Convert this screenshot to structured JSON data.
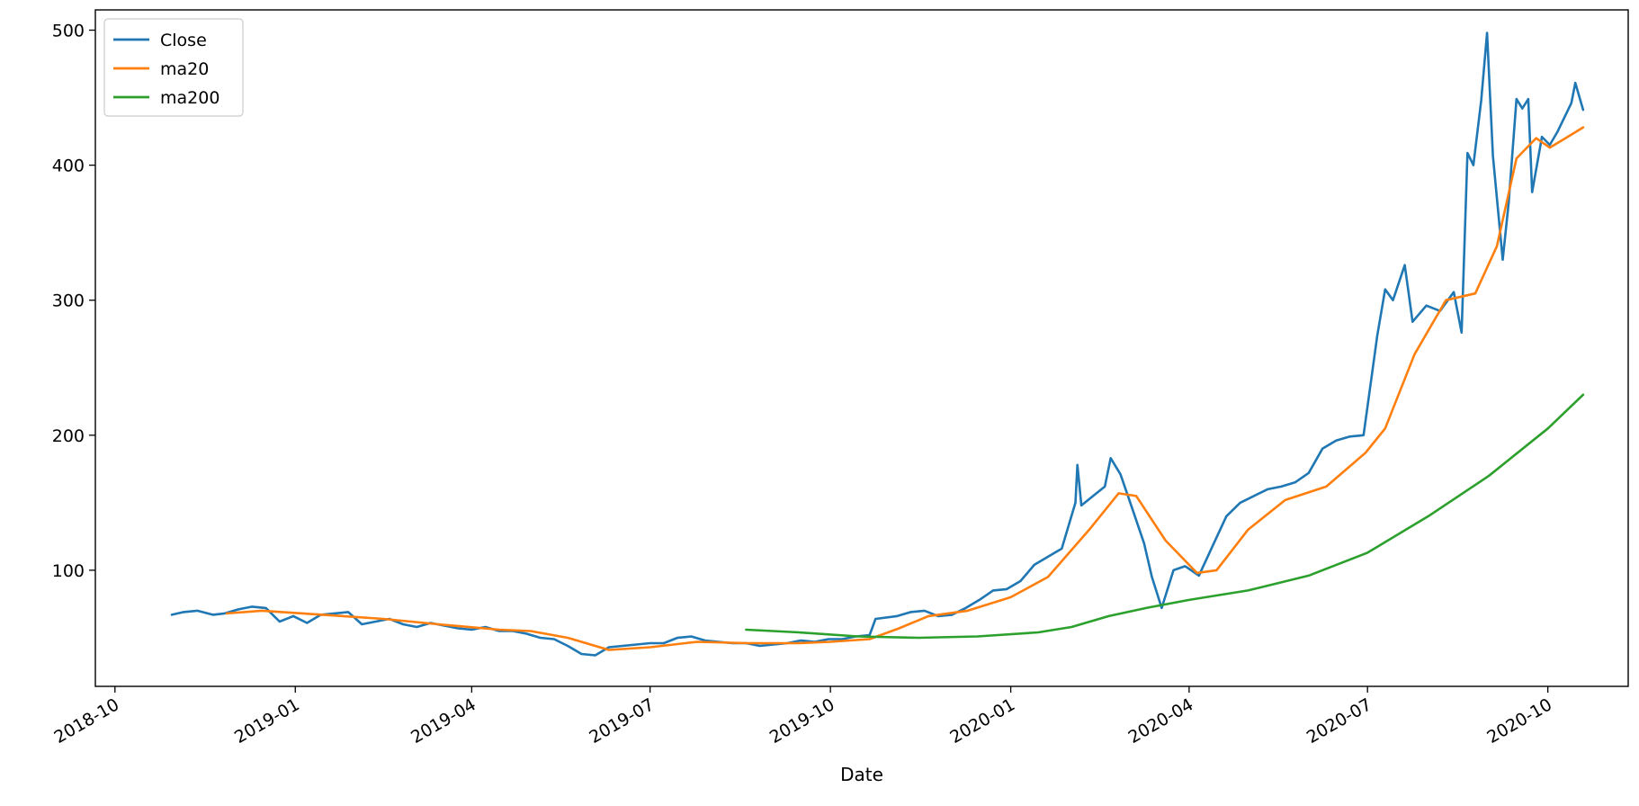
{
  "chart_data": {
    "type": "line",
    "xlabel": "Date",
    "ylabel": "",
    "xlim": [
      "2018-09-21",
      "2020-11-11"
    ],
    "ylim": [
      14,
      515
    ],
    "x_ticks": [
      "2018-10-01",
      "2019-01-01",
      "2019-04-01",
      "2019-07-01",
      "2019-10-01",
      "2020-01-01",
      "2020-04-01",
      "2020-07-01",
      "2020-10-01"
    ],
    "x_tick_labels": [
      "2018-10",
      "2019-01",
      "2019-04",
      "2019-07",
      "2019-10",
      "2020-01",
      "2020-04",
      "2020-07",
      "2020-10"
    ],
    "y_ticks": [
      100,
      200,
      300,
      400,
      500
    ],
    "y_tick_labels": [
      "100",
      "200",
      "300",
      "400",
      "500"
    ],
    "legend_position": "top-left",
    "grid": false,
    "series": [
      {
        "name": "Close",
        "color": "#1f77b4",
        "points": [
          [
            "2018-10-30",
            67
          ],
          [
            "2018-11-05",
            69
          ],
          [
            "2018-11-12",
            70
          ],
          [
            "2018-11-20",
            67
          ],
          [
            "2018-11-26",
            68
          ],
          [
            "2018-12-03",
            71
          ],
          [
            "2018-12-10",
            73
          ],
          [
            "2018-12-17",
            72
          ],
          [
            "2018-12-24",
            62
          ],
          [
            "2018-12-31",
            66
          ],
          [
            "2019-01-07",
            61
          ],
          [
            "2019-01-14",
            67
          ],
          [
            "2019-01-21",
            68
          ],
          [
            "2019-01-28",
            69
          ],
          [
            "2019-02-04",
            60
          ],
          [
            "2019-02-11",
            62
          ],
          [
            "2019-02-18",
            64
          ],
          [
            "2019-02-25",
            60
          ],
          [
            "2019-03-04",
            58
          ],
          [
            "2019-03-11",
            61
          ],
          [
            "2019-03-18",
            59
          ],
          [
            "2019-03-25",
            57
          ],
          [
            "2019-04-01",
            56
          ],
          [
            "2019-04-08",
            58
          ],
          [
            "2019-04-15",
            55
          ],
          [
            "2019-04-22",
            55
          ],
          [
            "2019-04-29",
            53
          ],
          [
            "2019-05-06",
            50
          ],
          [
            "2019-05-13",
            49
          ],
          [
            "2019-05-20",
            44
          ],
          [
            "2019-05-27",
            38
          ],
          [
            "2019-06-03",
            37
          ],
          [
            "2019-06-10",
            43
          ],
          [
            "2019-06-17",
            44
          ],
          [
            "2019-06-24",
            45
          ],
          [
            "2019-07-01",
            46
          ],
          [
            "2019-07-08",
            46
          ],
          [
            "2019-07-15",
            50
          ],
          [
            "2019-07-22",
            51
          ],
          [
            "2019-07-29",
            48
          ],
          [
            "2019-08-05",
            47
          ],
          [
            "2019-08-12",
            46
          ],
          [
            "2019-08-19",
            46
          ],
          [
            "2019-08-26",
            44
          ],
          [
            "2019-09-02",
            45
          ],
          [
            "2019-09-09",
            46
          ],
          [
            "2019-09-16",
            48
          ],
          [
            "2019-09-23",
            47
          ],
          [
            "2019-09-30",
            49
          ],
          [
            "2019-10-07",
            49
          ],
          [
            "2019-10-14",
            51
          ],
          [
            "2019-10-21",
            52
          ],
          [
            "2019-10-24",
            64
          ],
          [
            "2019-11-04",
            66
          ],
          [
            "2019-11-11",
            69
          ],
          [
            "2019-11-18",
            70
          ],
          [
            "2019-11-25",
            66
          ],
          [
            "2019-12-02",
            67
          ],
          [
            "2019-12-09",
            72
          ],
          [
            "2019-12-16",
            78
          ],
          [
            "2019-12-23",
            85
          ],
          [
            "2019-12-30",
            86
          ],
          [
            "2020-01-06",
            92
          ],
          [
            "2020-01-13",
            104
          ],
          [
            "2020-01-20",
            110
          ],
          [
            "2020-01-27",
            116
          ],
          [
            "2020-02-03",
            150
          ],
          [
            "2020-02-04",
            178
          ],
          [
            "2020-02-06",
            148
          ],
          [
            "2020-02-12",
            155
          ],
          [
            "2020-02-18",
            162
          ],
          [
            "2020-02-21",
            183
          ],
          [
            "2020-02-26",
            171
          ],
          [
            "2020-03-02",
            150
          ],
          [
            "2020-03-09",
            120
          ],
          [
            "2020-03-13",
            95
          ],
          [
            "2020-03-18",
            72
          ],
          [
            "2020-03-24",
            100
          ],
          [
            "2020-03-30",
            103
          ],
          [
            "2020-04-06",
            96
          ],
          [
            "2020-04-13",
            118
          ],
          [
            "2020-04-20",
            140
          ],
          [
            "2020-04-27",
            150
          ],
          [
            "2020-05-04",
            155
          ],
          [
            "2020-05-11",
            160
          ],
          [
            "2020-05-18",
            162
          ],
          [
            "2020-05-25",
            165
          ],
          [
            "2020-06-01",
            172
          ],
          [
            "2020-06-08",
            190
          ],
          [
            "2020-06-15",
            196
          ],
          [
            "2020-06-22",
            199
          ],
          [
            "2020-06-29",
            200
          ],
          [
            "2020-07-06",
            274
          ],
          [
            "2020-07-10",
            308
          ],
          [
            "2020-07-14",
            300
          ],
          [
            "2020-07-20",
            326
          ],
          [
            "2020-07-24",
            284
          ],
          [
            "2020-07-31",
            296
          ],
          [
            "2020-08-07",
            292
          ],
          [
            "2020-08-14",
            306
          ],
          [
            "2020-08-18",
            276
          ],
          [
            "2020-08-21",
            409
          ],
          [
            "2020-08-24",
            400
          ],
          [
            "2020-08-28",
            448
          ],
          [
            "2020-08-31",
            498
          ],
          [
            "2020-09-03",
            407
          ],
          [
            "2020-09-08",
            330
          ],
          [
            "2020-09-11",
            372
          ],
          [
            "2020-09-15",
            449
          ],
          [
            "2020-09-18",
            442
          ],
          [
            "2020-09-21",
            449
          ],
          [
            "2020-09-23",
            380
          ],
          [
            "2020-09-28",
            421
          ],
          [
            "2020-10-02",
            415
          ],
          [
            "2020-10-06",
            425
          ],
          [
            "2020-10-09",
            434
          ],
          [
            "2020-10-13",
            446
          ],
          [
            "2020-10-15",
            461
          ],
          [
            "2020-10-19",
            441
          ]
        ]
      },
      {
        "name": "ma20",
        "color": "#ff7f0e",
        "points": [
          [
            "2018-11-27",
            68
          ],
          [
            "2018-12-15",
            70
          ],
          [
            "2019-01-15",
            67
          ],
          [
            "2019-02-15",
            64
          ],
          [
            "2019-03-15",
            60
          ],
          [
            "2019-04-15",
            56
          ],
          [
            "2019-05-01",
            55
          ],
          [
            "2019-05-20",
            50
          ],
          [
            "2019-06-10",
            41
          ],
          [
            "2019-07-01",
            43
          ],
          [
            "2019-07-25",
            47
          ],
          [
            "2019-08-20",
            46
          ],
          [
            "2019-09-15",
            46
          ],
          [
            "2019-10-01",
            47
          ],
          [
            "2019-10-21",
            49
          ],
          [
            "2019-11-05",
            57
          ],
          [
            "2019-11-20",
            66
          ],
          [
            "2019-12-10",
            70
          ],
          [
            "2020-01-01",
            80
          ],
          [
            "2020-01-20",
            95
          ],
          [
            "2020-02-10",
            130
          ],
          [
            "2020-02-25",
            157
          ],
          [
            "2020-03-05",
            155
          ],
          [
            "2020-03-20",
            122
          ],
          [
            "2020-04-05",
            98
          ],
          [
            "2020-04-15",
            100
          ],
          [
            "2020-05-01",
            130
          ],
          [
            "2020-05-20",
            152
          ],
          [
            "2020-06-10",
            162
          ],
          [
            "2020-06-30",
            187
          ],
          [
            "2020-07-10",
            205
          ],
          [
            "2020-07-25",
            260
          ],
          [
            "2020-08-10",
            300
          ],
          [
            "2020-08-25",
            305
          ],
          [
            "2020-09-05",
            340
          ],
          [
            "2020-09-15",
            405
          ],
          [
            "2020-09-25",
            420
          ],
          [
            "2020-10-02",
            413
          ],
          [
            "2020-10-10",
            420
          ],
          [
            "2020-10-19",
            428
          ]
        ]
      },
      {
        "name": "ma200",
        "color": "#2ca02c",
        "points": [
          [
            "2019-08-19",
            56
          ],
          [
            "2019-09-15",
            54
          ],
          [
            "2019-10-15",
            51
          ],
          [
            "2019-11-15",
            50
          ],
          [
            "2019-12-15",
            51
          ],
          [
            "2020-01-15",
            54
          ],
          [
            "2020-02-01",
            58
          ],
          [
            "2020-02-20",
            66
          ],
          [
            "2020-03-10",
            72
          ],
          [
            "2020-04-01",
            78
          ],
          [
            "2020-05-01",
            85
          ],
          [
            "2020-06-01",
            96
          ],
          [
            "2020-07-01",
            113
          ],
          [
            "2020-08-01",
            140
          ],
          [
            "2020-09-01",
            170
          ],
          [
            "2020-10-01",
            205
          ],
          [
            "2020-10-19",
            230
          ]
        ]
      }
    ]
  }
}
